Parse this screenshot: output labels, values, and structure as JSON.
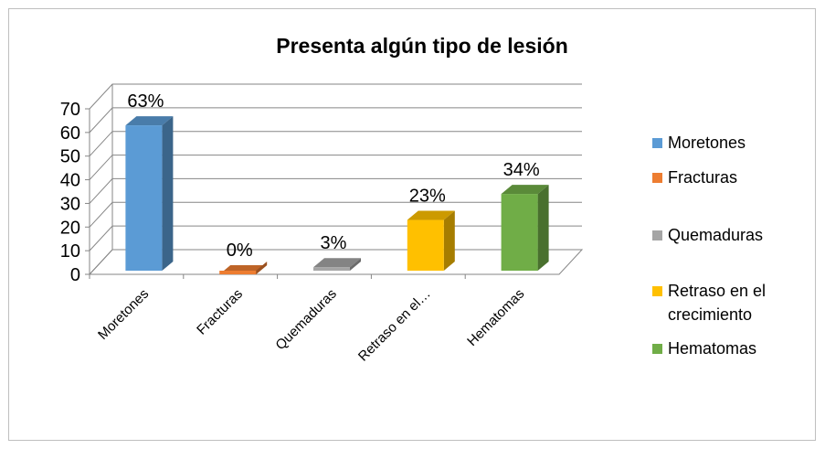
{
  "chart_data": {
    "type": "bar3d",
    "title": "Presenta algún tipo de lesión",
    "categories": [
      "Moretones",
      "Fracturas",
      "Quemaduras",
      "Retraso en el…",
      "Hematomas"
    ],
    "legend_labels": [
      "Moretones",
      "Fracturas",
      "Quemaduras",
      "Retraso en el crecimiento",
      "Hematomas"
    ],
    "values": [
      63,
      0,
      3,
      23,
      34
    ],
    "value_labels": [
      "63%",
      "0%",
      "3%",
      "23%",
      "34%"
    ],
    "colors": [
      "#5b9bd5",
      "#ed7d31",
      "#a5a5a5",
      "#ffc000",
      "#70ad47"
    ],
    "ylim": [
      0,
      70
    ],
    "yticks": [
      0,
      10,
      20,
      30,
      40,
      50,
      60,
      70
    ],
    "grid": true,
    "legend": "right"
  }
}
